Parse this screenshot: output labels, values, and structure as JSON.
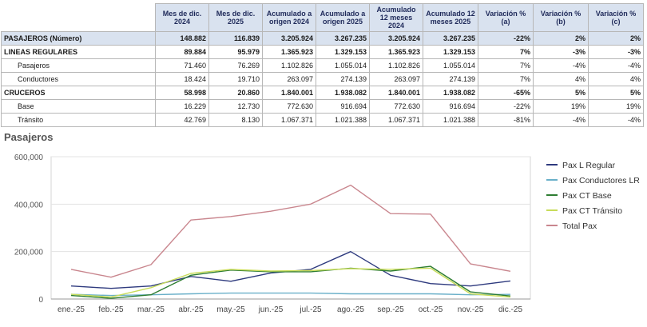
{
  "table": {
    "headers": [
      "Mes de dic. 2024",
      "Mes de dic. 2025",
      "Acumulado a origen 2024",
      "Acumulado a origen 2025",
      "Acumulado 12 meses 2024",
      "Acumulado 12 meses 2025",
      "Variación % (a)",
      "Variación % (b)",
      "Variación % (c)"
    ],
    "rows": [
      {
        "label": "PASAJEROS (Número)",
        "values": [
          "148.882",
          "116.839",
          "3.205.924",
          "3.267.235",
          "3.205.924",
          "3.267.235",
          "-22%",
          "2%",
          "2%"
        ]
      },
      {
        "label": "LINEAS REGULARES",
        "values": [
          "89.884",
          "95.979",
          "1.365.923",
          "1.329.153",
          "1.365.923",
          "1.329.153",
          "7%",
          "-3%",
          "-3%"
        ]
      },
      {
        "label": "Pasajeros",
        "values": [
          "71.460",
          "76.269",
          "1.102.826",
          "1.055.014",
          "1.102.826",
          "1.055.014",
          "7%",
          "-4%",
          "-4%"
        ]
      },
      {
        "label": "Conductores",
        "values": [
          "18.424",
          "19.710",
          "263.097",
          "274.139",
          "263.097",
          "274.139",
          "7%",
          "4%",
          "4%"
        ]
      },
      {
        "label": "CRUCEROS",
        "values": [
          "58.998",
          "20.860",
          "1.840.001",
          "1.938.082",
          "1.840.001",
          "1.938.082",
          "-65%",
          "5%",
          "5%"
        ]
      },
      {
        "label": "Base",
        "values": [
          "16.229",
          "12.730",
          "772.630",
          "916.694",
          "772.630",
          "916.694",
          "-22%",
          "19%",
          "19%"
        ]
      },
      {
        "label": "Tránsito",
        "values": [
          "42.769",
          "8.130",
          "1.067.371",
          "1.021.388",
          "1.067.371",
          "1.021.388",
          "-81%",
          "-4%",
          "-4%"
        ]
      }
    ]
  },
  "chart_title": "Pasajeros",
  "chart_data": {
    "type": "line",
    "title": "Pasajeros",
    "categories": [
      "ene.-25",
      "feb.-25",
      "mar.-25",
      "abr.-25",
      "may.-25",
      "jun.-25",
      "jul.-25",
      "ago.-25",
      "sep.-25",
      "oct.-25",
      "nov.-25",
      "dic.-25"
    ],
    "y_ticks": [
      "0",
      "200,000",
      "400,000",
      "600,000"
    ],
    "ylim": [
      0,
      600000
    ],
    "grid": true,
    "legend_position": "right",
    "series": [
      {
        "name": "Pax L Regular",
        "color": "#2e3a7e",
        "values": [
          55000,
          45000,
          55000,
          95000,
          75000,
          110000,
          125000,
          200000,
          100000,
          65000,
          55000,
          76269
        ]
      },
      {
        "name": "Pax Conductores LR",
        "color": "#6ab0c9",
        "values": [
          20000,
          15000,
          18000,
          22000,
          25000,
          25000,
          25000,
          22000,
          22000,
          22000,
          18000,
          19710
        ]
      },
      {
        "name": "Pax CT Base",
        "color": "#2e7d32",
        "values": [
          15000,
          3000,
          18000,
          100000,
          122000,
          115000,
          115000,
          130000,
          118000,
          138000,
          30000,
          12730
        ]
      },
      {
        "name": "Pax CT Tránsito",
        "color": "#c8dc5a",
        "values": [
          20000,
          8000,
          48000,
          108000,
          125000,
          118000,
          120000,
          128000,
          125000,
          130000,
          22000,
          8130
        ]
      },
      {
        "name": "Total Pax",
        "color": "#c9868e",
        "values": [
          125000,
          92000,
          145000,
          333000,
          348000,
          370000,
          400000,
          480000,
          360000,
          358000,
          148000,
          116839
        ]
      }
    ]
  }
}
